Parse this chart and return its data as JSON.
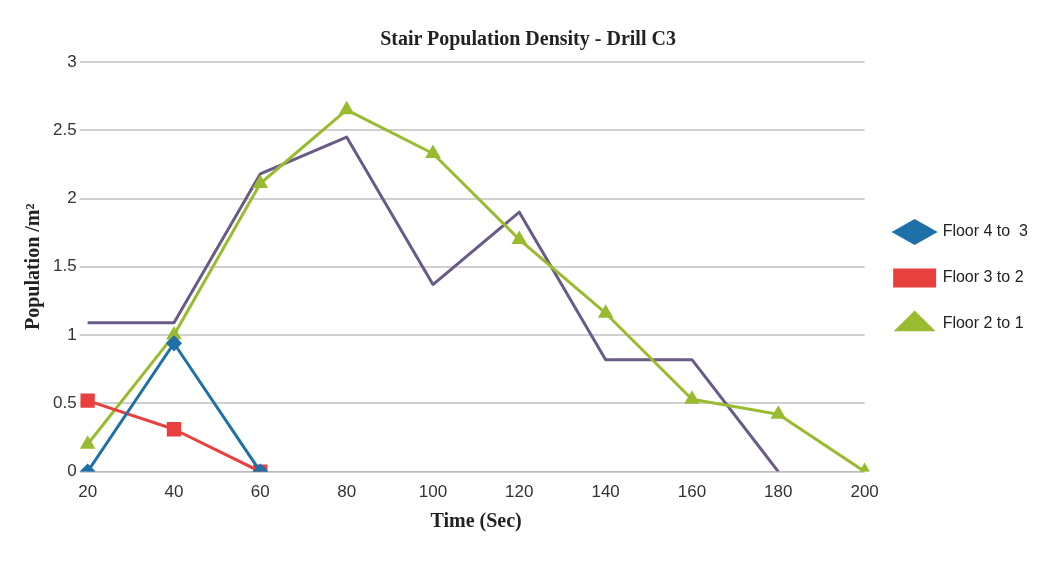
{
  "chart_data": {
    "type": "line",
    "title": "Stair Population Density - Drill C3",
    "xlabel": "Time (Sec)",
    "ylabel": "Population /m²",
    "categories": [
      "20",
      "40",
      "60",
      "80",
      "100",
      "120",
      "140",
      "160",
      "180",
      "200"
    ],
    "series": [
      {
        "name": "Floor 4 to  3",
        "color": "#1f6fa8",
        "marker": "diamond",
        "values": [
          0,
          0.94,
          0,
          null,
          null,
          null,
          null,
          null,
          null,
          null
        ]
      },
      {
        "name": "Floor 3 to 2",
        "color": "#e8403f",
        "marker": "square",
        "values": [
          0.52,
          0.31,
          0,
          null,
          null,
          null,
          null,
          null,
          null,
          null
        ]
      },
      {
        "name": "Floor 2 to 1",
        "color": "#99bb30",
        "marker": "triangle",
        "values": [
          0.2,
          1.0,
          2.11,
          2.65,
          2.33,
          1.7,
          1.16,
          0.53,
          0.42,
          0
        ]
      },
      {
        "color": "#6a5a88",
        "marker": "none",
        "values": [
          1.09,
          1.09,
          2.18,
          2.45,
          1.37,
          1.9,
          0.82,
          0.82,
          0,
          null
        ]
      }
    ],
    "ylim": [
      0,
      3
    ],
    "yticks": [
      0,
      0.5,
      1,
      1.5,
      2,
      2.5,
      3
    ],
    "grid": "y",
    "legend": "right"
  }
}
